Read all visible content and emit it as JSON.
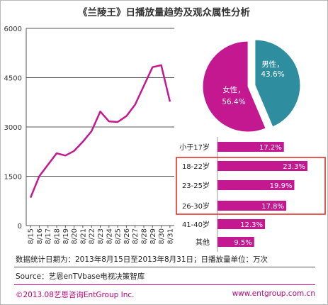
{
  "title": "《兰陵王》日播放量趋势及观众属性分析",
  "colors": {
    "magenta": "#c41890",
    "teal": "#2f8da0",
    "highlight": "#e0201c"
  },
  "chart_data": [
    {
      "type": "line",
      "x": [
        "8/15",
        "8/16",
        "8/17",
        "8/18",
        "8/19",
        "8/20",
        "8/21",
        "8/22",
        "8/23",
        "8/24",
        "8/25",
        "8/26",
        "8/27",
        "8/28",
        "8/29",
        "8/30",
        "8/31"
      ],
      "values": [
        850,
        1500,
        1850,
        2200,
        2130,
        2270,
        2550,
        2870,
        3470,
        3170,
        3150,
        3330,
        3680,
        4250,
        4820,
        4880,
        3770
      ],
      "yticks": [
        "0",
        "1500",
        "3000",
        "4500",
        "6000"
      ],
      "ylim": [
        0,
        6000
      ],
      "grid": true
    },
    {
      "type": "pie",
      "slices": [
        {
          "label": "男性",
          "value": 43.6,
          "display": "43.6%",
          "color": "#2f8da0"
        },
        {
          "label": "女性",
          "value": 56.4,
          "display": "56.4%",
          "color": "#c41890"
        }
      ]
    },
    {
      "type": "bar",
      "orientation": "horizontal",
      "categories": [
        "小于17岁",
        "18-22岁",
        "23-25岁",
        "26-30岁",
        "41-40岁",
        "其他"
      ],
      "values": [
        17.2,
        23.3,
        19.9,
        17.8,
        12.3,
        9.5
      ],
      "labels": [
        "17.2%",
        "23.3%",
        "19.9%",
        "17.8%",
        "12.3%",
        "9.5%"
      ],
      "highlighted": [
        "18-22岁",
        "23-25岁",
        "26-30岁"
      ]
    }
  ],
  "footer": {
    "note": "数据统计日期为：2013年8月15日至2013年8月31日；日播放量单位：万次",
    "source": "Source：艺恩enTVbase电视决策智库",
    "copyright": "©2013.08艺恩咨询EntGroup Inc.",
    "website": "www.entgroup.com.cn"
  }
}
